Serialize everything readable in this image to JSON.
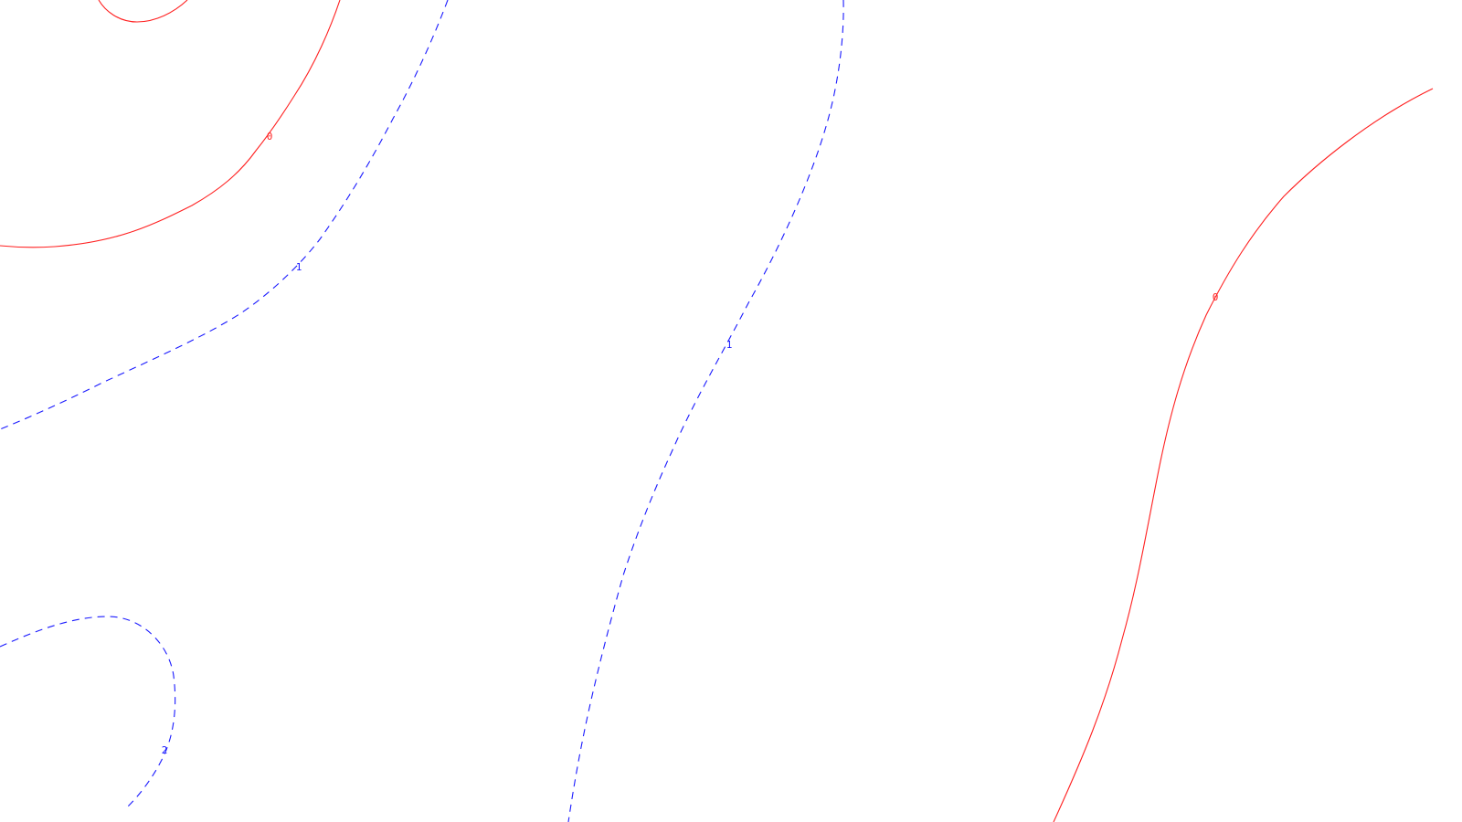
{
  "colors": {
    "background": "#ffffff",
    "positive_contour": "#ff2020",
    "negative_contour": "#1a1aff"
  },
  "contours": [
    {
      "id": "c0-top-left-inner",
      "label": "",
      "style": "solid",
      "color": "#ff2020"
    },
    {
      "id": "c0-top-left",
      "label": "0",
      "style": "solid",
      "color": "#ff2020"
    },
    {
      "id": "c1-left",
      "label": "1",
      "style": "dashed",
      "color": "#1a1aff"
    },
    {
      "id": "c1-center",
      "label": "1",
      "style": "dashed",
      "color": "#1a1aff"
    },
    {
      "id": "c0-right",
      "label": "0",
      "style": "solid",
      "color": "#ff2020"
    },
    {
      "id": "c2-bottom-left",
      "label": "2",
      "style": "dashed",
      "color": "#1a1aff"
    }
  ]
}
